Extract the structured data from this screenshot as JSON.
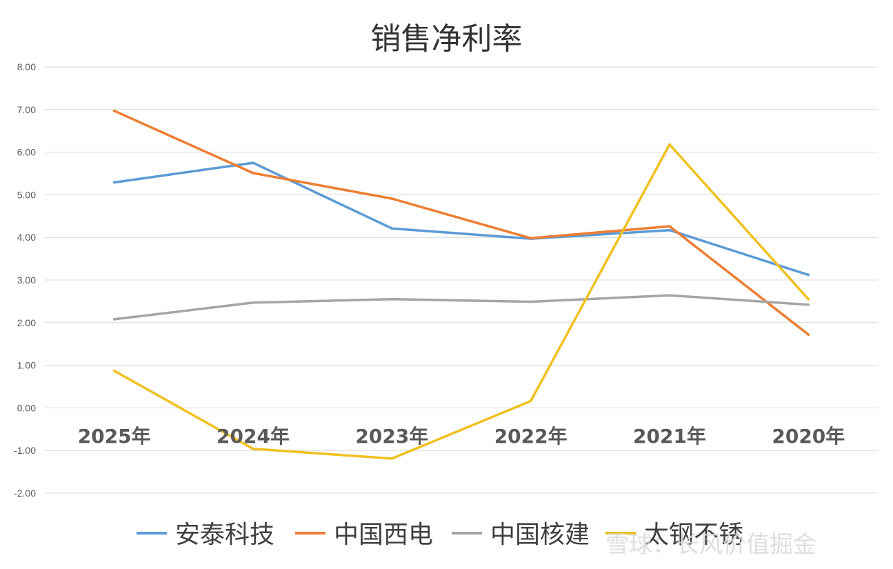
{
  "chart_data": {
    "type": "line",
    "title": "销售净利率",
    "categories": [
      "2025年",
      "2024年",
      "2023年",
      "2022年",
      "2021年",
      "2020年"
    ],
    "ylim": [
      -2,
      8
    ],
    "yticks": [
      "-2.00",
      "-1.00",
      "0.00",
      "1.00",
      "2.00",
      "3.00",
      "4.00",
      "5.00",
      "6.00",
      "7.00",
      "8.00"
    ],
    "grid": true,
    "legend_position": "bottom",
    "series": [
      {
        "name": "安泰科技",
        "color": "#5b9bd5",
        "values": [
          5.29,
          5.75,
          4.21,
          3.97,
          4.17,
          3.12
        ]
      },
      {
        "name": "中国西电",
        "color": "#ed7d31",
        "values": [
          6.97,
          5.51,
          4.91,
          3.98,
          4.26,
          1.72
        ]
      },
      {
        "name": "中国核建",
        "color": "#a5a5a5",
        "values": [
          2.08,
          2.47,
          2.55,
          2.49,
          2.64,
          2.42
        ]
      },
      {
        "name": "太钢不锈",
        "color": "#f0c01e",
        "values": [
          0.87,
          -0.96,
          -1.19,
          0.16,
          6.18,
          2.55
        ]
      }
    ]
  },
  "watermark": "雪球：长风价值掘金"
}
